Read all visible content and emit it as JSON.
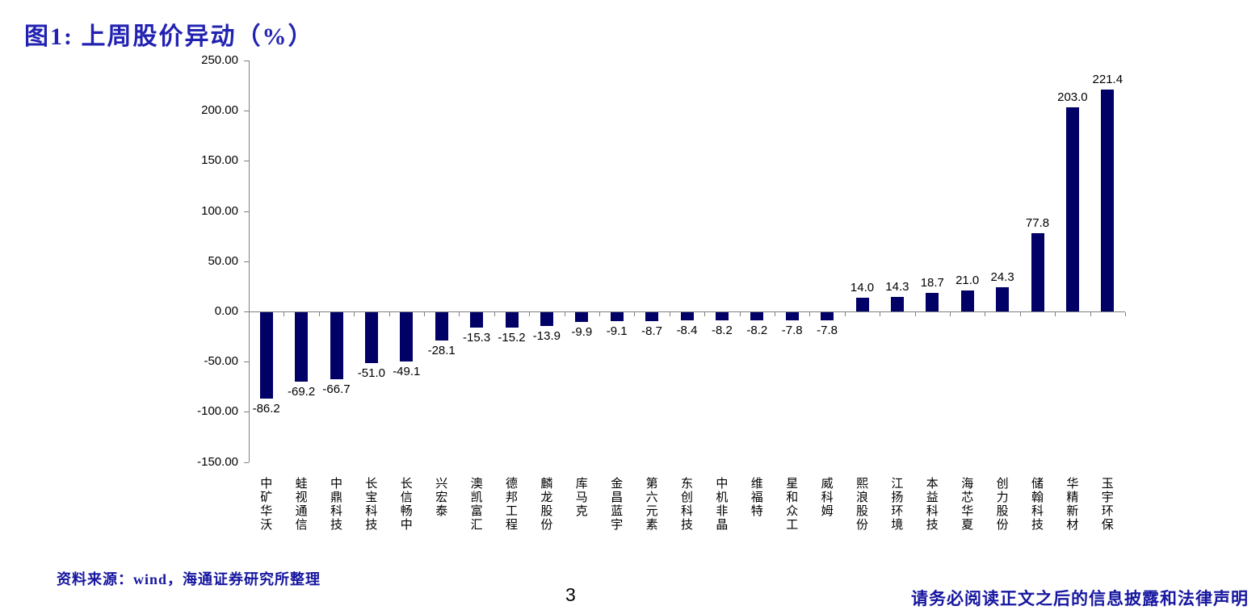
{
  "page": {
    "title": "图1:  上周股价异动（%）",
    "source_note": "资料来源：wind，海通证券研究所整理",
    "page_number": "3",
    "disclaimer": "请务必阅读正文之后的信息披露和法律声明"
  },
  "chart_data": {
    "type": "bar",
    "title": "上周股价异动（%）",
    "categories": [
      "中矿华沃",
      "蛙视通信",
      "中鼎科技",
      "长宝科技",
      "长信畅中",
      "兴宏泰",
      "澳凯富汇",
      "德邦工程",
      "麟龙股份",
      "库马克",
      "金昌蓝宇",
      "第六元素",
      "东创科技",
      "中机非晶",
      "维福特",
      "星和众工",
      "威科姆",
      "熙浪股份",
      "江扬环境",
      "本益科技",
      "海芯华夏",
      "创力股份",
      "储翰科技",
      "华精新材",
      "玉宇环保"
    ],
    "values": [
      -86.2,
      -69.2,
      -66.7,
      -51.0,
      -49.1,
      -28.1,
      -15.3,
      -15.2,
      -13.9,
      -9.9,
      -9.1,
      -8.7,
      -8.4,
      -8.2,
      -8.2,
      -7.8,
      -7.8,
      14.0,
      14.3,
      18.7,
      21.0,
      24.3,
      77.8,
      203.0,
      221.4
    ],
    "value_labels": [
      "-86.2",
      "-69.2",
      "-66.7",
      "-51.0",
      "-49.1",
      "-28.1",
      "-15.3",
      "-15.2",
      "-13.9",
      "-9.9",
      "-9.1",
      "-8.7",
      "-8.4",
      "-8.2",
      "-8.2",
      "-7.8",
      "-7.8",
      "14.0",
      "14.3",
      "18.7",
      "21.0",
      "24.3",
      "77.8",
      "203.0",
      "221.4"
    ],
    "ylim": [
      -150,
      250
    ],
    "ytick_step": 50,
    "ytick_labels": [
      "250.00",
      "200.00",
      "150.00",
      "100.00",
      "50.00",
      "0.00",
      "-50.00",
      "-100.00",
      "-150.00"
    ],
    "grid": false,
    "legend": null,
    "xlabel": "",
    "ylabel": "",
    "bar_color": "#000066",
    "axis_color": "#808080",
    "label_color": "#000000"
  }
}
